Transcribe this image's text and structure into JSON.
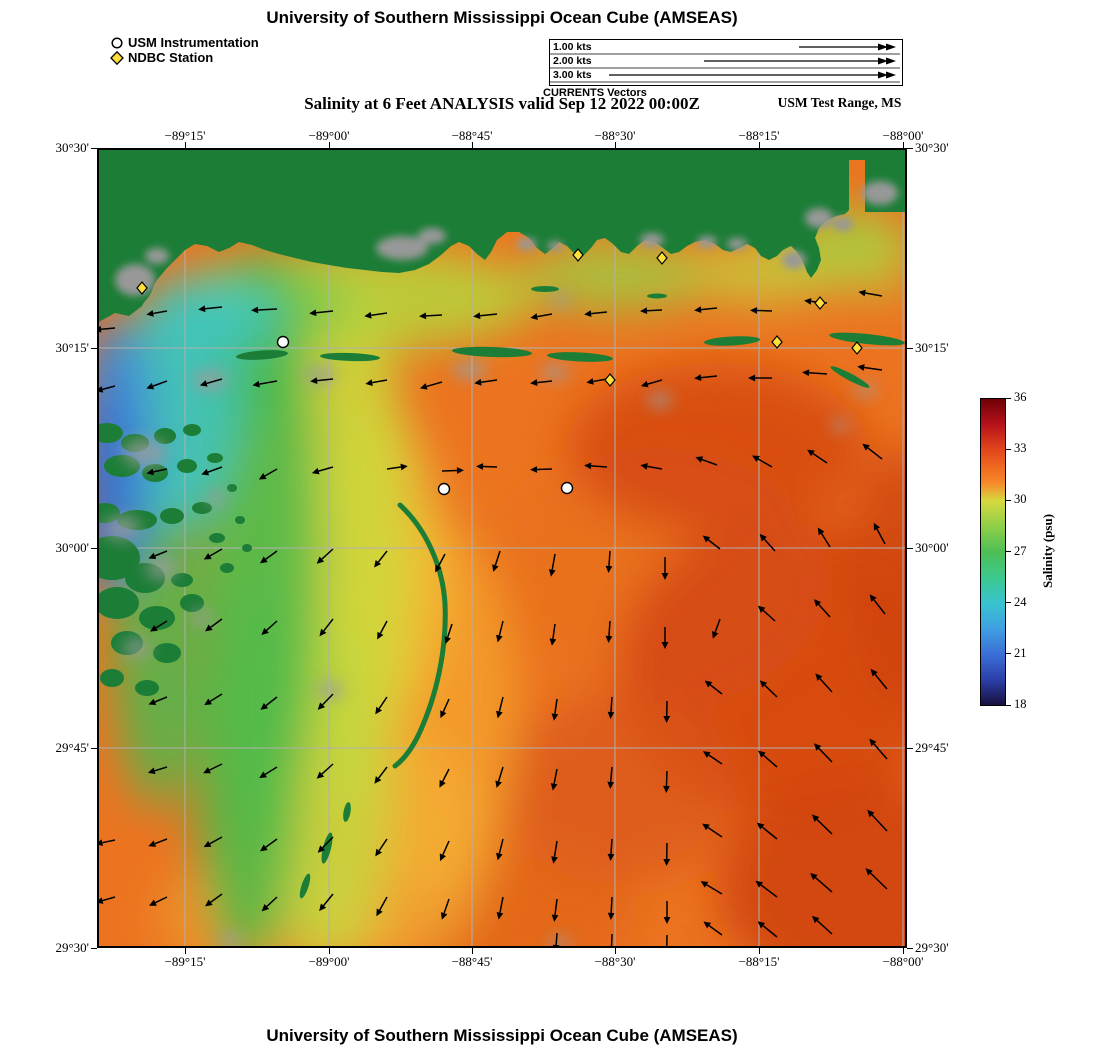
{
  "header": {
    "title": "University of Southern Mississippi Ocean Cube (AMSEAS)",
    "subtitle": "Salinity at 6 Feet ANALYSIS valid Sep 12 2022 00:00Z",
    "region_label": "USM Test Range, MS"
  },
  "footer": {
    "title": "University of Southern Mississippi Ocean Cube (AMSEAS)"
  },
  "station_legend": {
    "usm_label": "USM Instrumentation",
    "ndbc_label": "NDBC Station"
  },
  "vector_legend": {
    "caption": "CURRENTS Vectors",
    "entries": [
      [
        "1.00 kts",
        95
      ],
      [
        "2.00 kts",
        190
      ],
      [
        "3.00 kts",
        285
      ]
    ]
  },
  "axes": {
    "lon_ticks": [
      "−89°15'",
      "−89°00'",
      "−88°45'",
      "−88°30'",
      "−88°15'",
      "−88°00'"
    ],
    "lat_ticks": [
      "30°30'",
      "30°15'",
      "30°00'",
      "29°45'",
      "29°30'"
    ]
  },
  "colorbar": {
    "label": "Salinity (psu)",
    "min": 18,
    "max": 36,
    "ticks": [
      36,
      33,
      30,
      27,
      24,
      21,
      18
    ],
    "stops": [
      [
        36,
        "#6e0008"
      ],
      [
        34.5,
        "#b5121a"
      ],
      [
        33,
        "#e2451c"
      ],
      [
        32,
        "#ef6820"
      ],
      [
        31,
        "#f68b2a"
      ],
      [
        30,
        "#d6d93f"
      ],
      [
        28.5,
        "#8ecf48"
      ],
      [
        27,
        "#4dbf54"
      ],
      [
        25.5,
        "#3cc98e"
      ],
      [
        24,
        "#38c3cf"
      ],
      [
        22.5,
        "#3f9fe2"
      ],
      [
        21,
        "#3b6fd6"
      ],
      [
        19.5,
        "#2b3fa8"
      ],
      [
        18,
        "#170f3d"
      ]
    ]
  },
  "colors": {
    "ndbc_station": "#ffe03a",
    "usm_station": "#ffffff",
    "land": "#1b7d36",
    "grid": "#b0b0b0"
  },
  "map": {
    "stations_ndbc": [
      [
        45,
        140
      ],
      [
        481,
        107
      ],
      [
        565,
        110
      ],
      [
        723,
        155
      ],
      [
        680,
        194
      ],
      [
        760,
        200
      ],
      [
        513,
        232
      ]
    ],
    "stations_usm": [
      [
        186,
        194
      ],
      [
        347,
        341
      ],
      [
        470,
        340
      ]
    ],
    "arrows": [
      [
        18,
        180,
        185,
        14
      ],
      [
        70,
        163,
        190,
        14
      ],
      [
        125,
        159,
        186,
        17
      ],
      [
        180,
        161,
        183,
        19
      ],
      [
        236,
        163,
        186,
        17
      ],
      [
        290,
        165,
        188,
        16
      ],
      [
        345,
        167,
        183,
        16
      ],
      [
        400,
        166,
        186,
        17
      ],
      [
        455,
        166,
        190,
        15
      ],
      [
        510,
        164,
        186,
        16
      ],
      [
        565,
        162,
        183,
        15
      ],
      [
        620,
        160,
        186,
        16
      ],
      [
        675,
        163,
        178,
        15
      ],
      [
        730,
        155,
        174,
        16
      ],
      [
        785,
        148,
        170,
        17
      ],
      [
        18,
        238,
        195,
        13
      ],
      [
        70,
        233,
        200,
        15
      ],
      [
        125,
        231,
        196,
        16
      ],
      [
        180,
        233,
        190,
        18
      ],
      [
        236,
        231,
        186,
        16
      ],
      [
        290,
        232,
        190,
        15
      ],
      [
        345,
        234,
        196,
        16
      ],
      [
        400,
        232,
        188,
        16
      ],
      [
        455,
        233,
        186,
        15
      ],
      [
        510,
        231,
        190,
        14
      ],
      [
        565,
        232,
        196,
        15
      ],
      [
        620,
        228,
        186,
        16
      ],
      [
        675,
        230,
        180,
        17
      ],
      [
        730,
        226,
        176,
        18
      ],
      [
        785,
        222,
        172,
        18
      ],
      [
        70,
        321,
        192,
        14
      ],
      [
        125,
        319,
        200,
        15
      ],
      [
        180,
        321,
        210,
        14
      ],
      [
        236,
        319,
        196,
        15
      ],
      [
        290,
        321,
        8,
        14
      ],
      [
        345,
        323,
        2,
        15
      ],
      [
        400,
        319,
        178,
        14
      ],
      [
        455,
        321,
        182,
        15
      ],
      [
        510,
        319,
        176,
        16
      ],
      [
        565,
        321,
        170,
        15
      ],
      [
        620,
        317,
        160,
        16
      ],
      [
        675,
        319,
        150,
        16
      ],
      [
        730,
        315,
        146,
        17
      ],
      [
        785,
        311,
        142,
        18
      ],
      [
        70,
        403,
        202,
        13
      ],
      [
        125,
        401,
        210,
        14
      ],
      [
        180,
        403,
        216,
        14
      ],
      [
        236,
        401,
        222,
        15
      ],
      [
        290,
        403,
        232,
        14
      ],
      [
        348,
        406,
        242,
        14
      ],
      [
        403,
        403,
        252,
        15
      ],
      [
        458,
        406,
        260,
        16
      ],
      [
        513,
        403,
        266,
        15
      ],
      [
        568,
        409,
        270,
        16
      ],
      [
        623,
        401,
        142,
        15
      ],
      [
        678,
        403,
        132,
        16
      ],
      [
        733,
        399,
        122,
        16
      ],
      [
        788,
        396,
        118,
        17
      ],
      [
        70,
        473,
        212,
        13
      ],
      [
        125,
        471,
        216,
        14
      ],
      [
        180,
        473,
        222,
        14
      ],
      [
        236,
        471,
        232,
        15
      ],
      [
        290,
        473,
        242,
        14
      ],
      [
        355,
        476,
        252,
        14
      ],
      [
        406,
        473,
        256,
        15
      ],
      [
        458,
        476,
        262,
        15
      ],
      [
        513,
        473,
        266,
        15
      ],
      [
        568,
        479,
        270,
        15
      ],
      [
        623,
        471,
        250,
        14
      ],
      [
        678,
        473,
        138,
        16
      ],
      [
        733,
        469,
        132,
        17
      ],
      [
        788,
        466,
        128,
        18
      ],
      [
        70,
        549,
        202,
        13
      ],
      [
        125,
        546,
        212,
        14
      ],
      [
        180,
        549,
        218,
        14
      ],
      [
        236,
        546,
        226,
        15
      ],
      [
        290,
        549,
        236,
        14
      ],
      [
        352,
        551,
        246,
        14
      ],
      [
        406,
        549,
        256,
        15
      ],
      [
        460,
        551,
        262,
        15
      ],
      [
        515,
        549,
        266,
        15
      ],
      [
        570,
        553,
        269,
        15
      ],
      [
        625,
        546,
        142,
        15
      ],
      [
        680,
        549,
        136,
        17
      ],
      [
        735,
        544,
        132,
        18
      ],
      [
        790,
        541,
        129,
        19
      ],
      [
        70,
        619,
        197,
        13
      ],
      [
        125,
        616,
        206,
        14
      ],
      [
        180,
        619,
        212,
        14
      ],
      [
        236,
        616,
        222,
        15
      ],
      [
        290,
        619,
        233,
        14
      ],
      [
        352,
        621,
        243,
        14
      ],
      [
        406,
        619,
        253,
        15
      ],
      [
        460,
        621,
        259,
        15
      ],
      [
        515,
        619,
        265,
        15
      ],
      [
        570,
        623,
        268,
        15
      ],
      [
        625,
        616,
        146,
        16
      ],
      [
        680,
        619,
        139,
        18
      ],
      [
        735,
        614,
        134,
        19
      ],
      [
        790,
        611,
        131,
        20
      ],
      [
        18,
        692,
        192,
        13
      ],
      [
        70,
        691,
        201,
        13
      ],
      [
        125,
        689,
        209,
        14
      ],
      [
        180,
        691,
        216,
        14
      ],
      [
        236,
        689,
        226,
        15
      ],
      [
        290,
        691,
        236,
        14
      ],
      [
        352,
        693,
        246,
        15
      ],
      [
        406,
        691,
        256,
        15
      ],
      [
        460,
        693,
        261,
        16
      ],
      [
        515,
        691,
        266,
        15
      ],
      [
        570,
        695,
        269,
        16
      ],
      [
        625,
        689,
        146,
        17
      ],
      [
        680,
        691,
        141,
        19
      ],
      [
        735,
        686,
        136,
        21
      ],
      [
        790,
        683,
        133,
        22
      ],
      [
        18,
        749,
        196,
        13
      ],
      [
        70,
        749,
        206,
        13
      ],
      [
        125,
        746,
        216,
        14
      ],
      [
        180,
        749,
        223,
        14
      ],
      [
        236,
        746,
        231,
        15
      ],
      [
        290,
        749,
        241,
        15
      ],
      [
        352,
        751,
        251,
        15
      ],
      [
        406,
        749,
        259,
        16
      ],
      [
        460,
        751,
        263,
        16
      ],
      [
        515,
        749,
        267,
        16
      ],
      [
        570,
        753,
        270,
        16
      ],
      [
        625,
        746,
        149,
        18
      ],
      [
        680,
        749,
        143,
        20
      ],
      [
        735,
        744,
        139,
        22
      ],
      [
        790,
        741,
        136,
        23
      ],
      [
        460,
        785,
        266,
        12
      ],
      [
        515,
        786,
        268,
        12
      ],
      [
        570,
        787,
        269,
        12
      ],
      [
        625,
        787,
        144,
        16
      ],
      [
        680,
        789,
        141,
        18
      ],
      [
        735,
        786,
        138,
        20
      ]
    ]
  }
}
